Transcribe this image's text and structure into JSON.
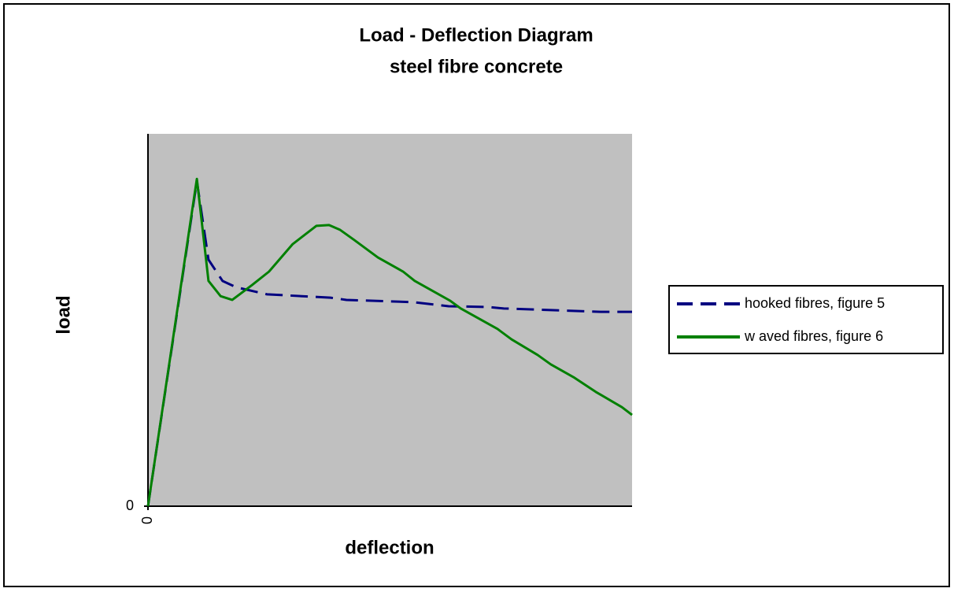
{
  "chart_data": {
    "type": "line",
    "title": "Load - Deflection Diagram",
    "subtitle": "steel fibre concrete",
    "x_label": "deflection",
    "y_label": "load",
    "xlim": [
      0,
      100
    ],
    "ylim": [
      0,
      100
    ],
    "xticks": [
      0
    ],
    "yticks": [
      0
    ],
    "plot_background": "#c0c0c0",
    "grid": false,
    "legend_position": "right",
    "series": [
      {
        "name": "hooked fibres, figure 5",
        "color": "#000080",
        "dashed": true,
        "x": [
          0,
          10.1,
          12.5,
          15.4,
          18.2,
          24.6,
          37.7,
          41.0,
          54.8,
          62.1,
          70.2,
          73.5,
          93.5,
          100
        ],
        "values": [
          0,
          87.3,
          66.2,
          60.5,
          58.8,
          56.9,
          56.0,
          55.4,
          54.8,
          53.7,
          53.5,
          53.1,
          52.2,
          52.2
        ]
      },
      {
        "name": "w aved fibres, figure 6",
        "color": "#008000",
        "dashed": false,
        "x": [
          0,
          10.1,
          12.5,
          15.0,
          17.4,
          21.5,
          25.0,
          29.9,
          34.8,
          37.4,
          39.7,
          42.6,
          47.5,
          52.7,
          55.1,
          62.4,
          64.6,
          72.2,
          75.1,
          80.5,
          83.2,
          88.1,
          92.5,
          97.9,
          100
        ],
        "values": [
          0,
          87.9,
          60.5,
          56.4,
          55.4,
          59.4,
          63.0,
          70.4,
          75.3,
          75.5,
          74.2,
          71.5,
          66.8,
          63.0,
          60.5,
          55.2,
          53.1,
          47.6,
          44.8,
          40.6,
          38.1,
          34.5,
          30.7,
          26.6,
          24.5
        ]
      }
    ]
  }
}
